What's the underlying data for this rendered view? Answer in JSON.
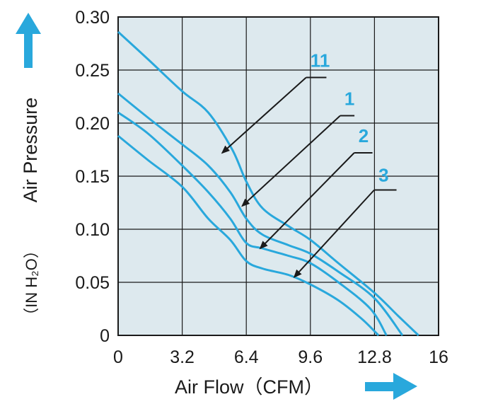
{
  "chart_data": {
    "type": "line",
    "xlabel": "Air Flow（CFM）",
    "ylabel": "Air Pressure",
    "ylabel_unit": "（IN H₂O）",
    "xlim": [
      0,
      16
    ],
    "ylim": [
      0,
      0.3
    ],
    "x_ticks": [
      "0",
      "3.2",
      "6.4",
      "9.6",
      "12.8",
      "16"
    ],
    "y_ticks": [
      "0",
      "0.05",
      "0.10",
      "0.15",
      "0.20",
      "0.25",
      "0.30"
    ],
    "grid": true,
    "colors": {
      "plot_bg": "#dde9ee",
      "grid": "#1a1a1a",
      "curve": "#29a8dc",
      "label": "#29a8dc",
      "arrow": "#1a1a1a"
    },
    "series": [
      {
        "name": "11",
        "x": [
          0,
          1.5,
          3.2,
          4.5,
          5.7,
          6.4,
          7.2,
          8.5,
          9.6,
          11.0,
          12.8,
          14.0,
          15.0
        ],
        "y": [
          0.286,
          0.26,
          0.23,
          0.21,
          0.175,
          0.145,
          0.12,
          0.103,
          0.09,
          0.068,
          0.04,
          0.018,
          0
        ]
      },
      {
        "name": "1",
        "x": [
          0,
          1.5,
          3.2,
          4.5,
          5.6,
          6.4,
          7.2,
          8.5,
          9.6,
          11.0,
          12.8,
          14.2
        ],
        "y": [
          0.228,
          0.205,
          0.18,
          0.16,
          0.135,
          0.11,
          0.095,
          0.085,
          0.077,
          0.06,
          0.035,
          0
        ]
      },
      {
        "name": "2",
        "x": [
          0,
          1.5,
          3.2,
          4.5,
          5.6,
          6.4,
          7.2,
          8.5,
          9.6,
          11.0,
          12.6,
          13.4
        ],
        "y": [
          0.21,
          0.19,
          0.16,
          0.135,
          0.11,
          0.087,
          0.082,
          0.075,
          0.068,
          0.05,
          0.025,
          0
        ]
      },
      {
        "name": "3",
        "x": [
          0,
          1.5,
          3.2,
          4.5,
          5.6,
          6.4,
          7.2,
          8.5,
          9.6,
          11.0,
          12.2,
          13.0
        ],
        "y": [
          0.188,
          0.165,
          0.14,
          0.11,
          0.09,
          0.07,
          0.063,
          0.057,
          0.048,
          0.033,
          0.015,
          0
        ]
      }
    ],
    "callouts": [
      {
        "label": "11",
        "label_xy": [
          9.6,
          0.253
        ],
        "bar_end": [
          10.4,
          0.243
        ],
        "tip": [
          5.2,
          0.172
        ]
      },
      {
        "label": "1",
        "label_xy": [
          11.3,
          0.217
        ],
        "bar_end": [
          11.8,
          0.207
        ],
        "tip": [
          6.2,
          0.122
        ]
      },
      {
        "label": "2",
        "label_xy": [
          12.0,
          0.182
        ],
        "bar_end": [
          12.7,
          0.172
        ],
        "tip": [
          7.1,
          0.082
        ]
      },
      {
        "label": "3",
        "label_xy": [
          13.0,
          0.145
        ],
        "bar_end": [
          13.9,
          0.137
        ],
        "tip": [
          8.8,
          0.055
        ]
      }
    ]
  }
}
